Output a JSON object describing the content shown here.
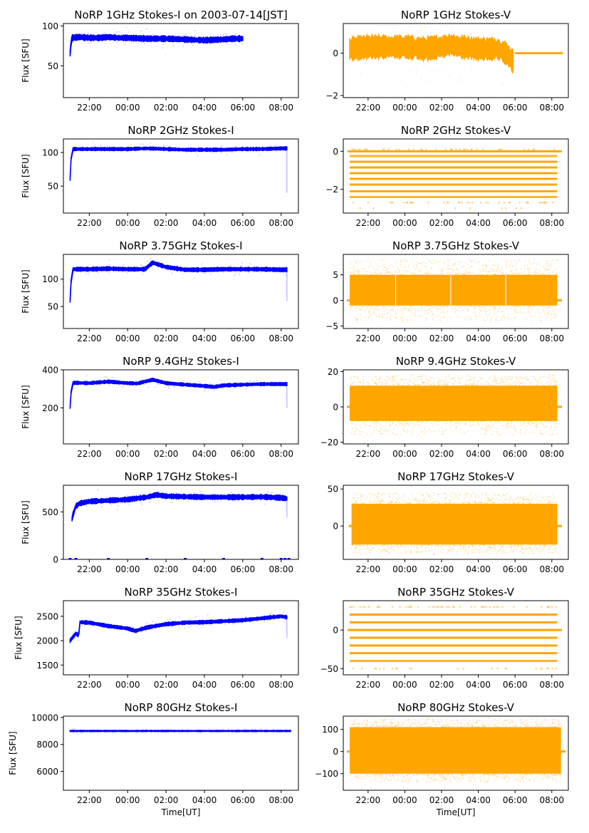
{
  "figure": {
    "title_prefix": "NoRP",
    "date_label": "on 2003-07-14[JST]"
  },
  "chart_data": [
    {
      "type": "scatter",
      "panel": "I",
      "freq": "1GHz",
      "title": "NoRP 1GHz Stokes-I on 2003-07-14[JST]",
      "ylabel": "Flux [SFU]",
      "xlabel": "",
      "color": "#0000ff",
      "ylim": [
        10,
        103
      ],
      "yticks": [
        50,
        100
      ],
      "ytick_labels": [
        "50",
        "100"
      ],
      "xlim_hours": [
        -3.35,
        8.9
      ],
      "xticks": [
        "22:00",
        "00:00",
        "02:00",
        "04:00",
        "06:00",
        "08:00"
      ],
      "series": [
        {
          "name": "Stokes-I",
          "x": [
            -3.0,
            -2.95,
            -2.9,
            -2.5,
            -2.0,
            -1.5,
            -1.0,
            -0.5,
            0,
            1,
            2,
            3,
            4,
            5,
            5.5,
            6.0
          ],
          "y": [
            65,
            78,
            85,
            86,
            85,
            85,
            86,
            85,
            85,
            84,
            84,
            83,
            82,
            83,
            84,
            84
          ],
          "spread": 3
        }
      ]
    },
    {
      "type": "scatter",
      "panel": "V",
      "freq": "1GHz",
      "title": "NoRP 1GHz Stokes-V",
      "ylabel": "",
      "xlabel": "",
      "color": "#ffa500",
      "ylim": [
        -2.1,
        1.4
      ],
      "yticks": [
        -2,
        0
      ],
      "ytick_labels": [
        "−2",
        "0"
      ],
      "xlim_hours": [
        -3.35,
        8.9
      ],
      "xticks": [
        "22:00",
        "00:00",
        "02:00",
        "04:00",
        "06:00",
        "08:00"
      ],
      "series": [
        {
          "name": "Stokes-V",
          "x": [
            -3.0,
            -2,
            -1,
            0,
            1,
            2,
            2.5,
            3,
            4,
            5,
            5.5,
            5.9
          ],
          "y": [
            0.2,
            0.3,
            0.3,
            0.3,
            0.2,
            0.3,
            0.4,
            0.3,
            0.2,
            0.2,
            0.0,
            -0.4
          ],
          "spread": 0.45
        },
        {
          "name": "Stokes-V flat",
          "x": [
            6.0,
            8.6
          ],
          "y": [
            0,
            0
          ],
          "spread": 0
        }
      ]
    },
    {
      "type": "scatter",
      "panel": "I",
      "freq": "2GHz",
      "title": "NoRP 2GHz Stokes-I",
      "ylabel": "Flux [SFU]",
      "xlabel": "",
      "color": "#0000ff",
      "ylim": [
        10,
        120
      ],
      "yticks": [
        50,
        100
      ],
      "ytick_labels": [
        "50",
        "100"
      ],
      "xlim_hours": [
        -3.35,
        8.9
      ],
      "xticks": [
        "22:00",
        "00:00",
        "02:00",
        "04:00",
        "06:00",
        "08:00"
      ],
      "series": [
        {
          "name": "Stokes-I",
          "x": [
            -3.0,
            -2.95,
            -2.85,
            -2,
            -1,
            0,
            1,
            2,
            3,
            4,
            5,
            6,
            7,
            8,
            8.3
          ],
          "y": [
            60,
            90,
            105,
            105,
            105,
            105,
            106,
            105,
            104,
            104,
            104,
            105,
            105,
            106,
            106
          ],
          "spread": 2
        }
      ]
    },
    {
      "type": "scatter",
      "panel": "V",
      "freq": "2GHz",
      "title": "NoRP 2GHz Stokes-V",
      "ylabel": "",
      "xlabel": "",
      "color": "#ffa500",
      "ylim": [
        -3.25,
        0.65
      ],
      "yticks": [
        -2,
        0
      ],
      "ytick_labels": [
        "−2",
        "0"
      ],
      "xlim_hours": [
        -3.35,
        8.9
      ],
      "xticks": [
        "22:00",
        "00:00",
        "02:00",
        "04:00",
        "06:00",
        "08:00"
      ],
      "levels": [
        0.1,
        -0.25,
        -0.55,
        -0.85,
        -1.15,
        -1.45,
        -1.75,
        -2.1,
        -2.4,
        -2.7,
        -3.0
      ],
      "level_density": [
        0.25,
        0.85,
        1,
        1,
        1,
        1,
        1,
        1,
        0.8,
        0.25,
        0.05
      ],
      "x_range_hours": [
        -3.0,
        8.3
      ]
    },
    {
      "type": "scatter",
      "panel": "I",
      "freq": "3.75GHz",
      "title": "NoRP 3.75GHz Stokes-I",
      "ylabel": "Flux [SFU]",
      "xlabel": "",
      "color": "#0000ff",
      "ylim": [
        10,
        145
      ],
      "yticks": [
        50,
        100
      ],
      "ytick_labels": [
        "50",
        "100"
      ],
      "xlim_hours": [
        -3.35,
        8.9
      ],
      "xticks": [
        "22:00",
        "00:00",
        "02:00",
        "04:00",
        "06:00",
        "08:00"
      ],
      "series": [
        {
          "name": "Stokes-I",
          "x": [
            -3.0,
            -2.95,
            -2.85,
            -2,
            -1,
            0,
            0.9,
            1.3,
            2,
            3,
            4,
            5,
            6,
            7,
            8,
            8.3
          ],
          "y": [
            60,
            95,
            118,
            118,
            119,
            118,
            118,
            130,
            122,
            117,
            117,
            118,
            118,
            118,
            117,
            117
          ],
          "spread": 3
        }
      ]
    },
    {
      "type": "scatter",
      "panel": "V",
      "freq": "3.75GHz",
      "title": "NoRP 3.75GHz Stokes-V",
      "ylabel": "",
      "xlabel": "",
      "color": "#ffa500",
      "ylim": [
        -5.5,
        9
      ],
      "yticks": [
        -5,
        0,
        5
      ],
      "ytick_labels": [
        "−5",
        "0",
        "5"
      ],
      "xlim_hours": [
        -3.35,
        8.9
      ],
      "xticks": [
        "22:00",
        "00:00",
        "02:00",
        "04:00",
        "06:00",
        "08:00"
      ],
      "band": {
        "x": [
          -3.0,
          8.3
        ],
        "low": -1,
        "high": 5,
        "outlier_low": -4,
        "outlier_high": 8
      },
      "gaps_hours": [
        -0.5,
        2.5,
        5.5
      ]
    },
    {
      "type": "scatter",
      "panel": "I",
      "freq": "9.4GHz",
      "title": "NoRP 9.4GHz Stokes-I",
      "ylabel": "Flux [SFU]",
      "xlabel": "",
      "color": "#0000ff",
      "ylim": [
        10,
        400
      ],
      "yticks": [
        200,
        400
      ],
      "ytick_labels": [
        "200",
        "400"
      ],
      "xlim_hours": [
        -3.35,
        8.9
      ],
      "xticks": [
        "22:00",
        "00:00",
        "02:00",
        "04:00",
        "06:00",
        "08:00"
      ],
      "series": [
        {
          "name": "Stokes-I",
          "x": [
            -3.0,
            -2.95,
            -2.85,
            -2,
            -1,
            0,
            0.5,
            1.3,
            2,
            3,
            4,
            4.5,
            5,
            6,
            7,
            8,
            8.3
          ],
          "y": [
            200,
            280,
            332,
            330,
            338,
            330,
            328,
            348,
            330,
            322,
            315,
            310,
            318,
            322,
            325,
            325,
            325
          ],
          "spread": 7
        }
      ]
    },
    {
      "type": "scatter",
      "panel": "V",
      "freq": "9.4GHz",
      "title": "NoRP 9.4GHz Stokes-V",
      "ylabel": "",
      "xlabel": "",
      "color": "#ffa500",
      "ylim": [
        -21,
        21
      ],
      "yticks": [
        -20,
        0,
        20
      ],
      "ytick_labels": [
        "−20",
        "0",
        "20"
      ],
      "xlim_hours": [
        -3.35,
        8.9
      ],
      "xticks": [
        "22:00",
        "00:00",
        "02:00",
        "04:00",
        "06:00",
        "08:00"
      ],
      "band": {
        "x": [
          -3.0,
          8.3
        ],
        "low": -8,
        "high": 12,
        "outlier_low": -16,
        "outlier_high": 18
      }
    },
    {
      "type": "scatter",
      "panel": "I",
      "freq": "17GHz",
      "title": "NoRP 17GHz Stokes-I",
      "ylabel": "Flux [SFU]",
      "xlabel": "",
      "color": "#0000ff",
      "ylim": [
        0,
        780
      ],
      "yticks": [
        0,
        500
      ],
      "ytick_labels": [
        "0",
        "500"
      ],
      "xlim_hours": [
        -3.35,
        8.9
      ],
      "xticks": [
        "22:00",
        "00:00",
        "02:00",
        "04:00",
        "06:00",
        "08:00"
      ],
      "series": [
        {
          "name": "Stokes-I",
          "x": [
            -2.9,
            -2.85,
            -2.7,
            -2.5,
            -2,
            -1,
            0,
            1,
            1.5,
            2,
            3,
            4,
            5,
            6,
            7,
            8,
            8.3
          ],
          "y": [
            420,
            470,
            560,
            590,
            610,
            620,
            630,
            655,
            680,
            665,
            660,
            655,
            655,
            655,
            658,
            648,
            640
          ],
          "spread": 22
        }
      ],
      "zero_marks_hours": [
        -3.0,
        -2.7,
        -1.0,
        1.0,
        3.0,
        5.0,
        7.0,
        8.0,
        8.2,
        8.4
      ]
    },
    {
      "type": "scatter",
      "panel": "V",
      "freq": "17GHz",
      "title": "NoRP 17GHz Stokes-V",
      "ylabel": "",
      "xlabel": "",
      "color": "#ffa500",
      "ylim": [
        -45,
        55
      ],
      "yticks": [
        0,
        50
      ],
      "ytick_labels": [
        "0",
        "50"
      ],
      "xlim_hours": [
        -3.35,
        8.9
      ],
      "xticks": [
        "22:00",
        "00:00",
        "02:00",
        "04:00",
        "06:00",
        "08:00"
      ],
      "band": {
        "x": [
          -2.9,
          8.3
        ],
        "low": -25,
        "high": 30,
        "outlier_low": -38,
        "outlier_high": 45
      }
    },
    {
      "type": "scatter",
      "panel": "I",
      "freq": "35GHz",
      "title": "NoRP 35GHz Stokes-I",
      "ylabel": "Flux [SFU]",
      "xlabel": "",
      "color": "#0000ff",
      "ylim": [
        1300,
        2820
      ],
      "yticks": [
        1500,
        2000,
        2500
      ],
      "ytick_labels": [
        "1500",
        "2000",
        "2500"
      ],
      "xlim_hours": [
        -3.35,
        8.9
      ],
      "xticks": [
        "22:00",
        "00:00",
        "02:00",
        "04:00",
        "06:00",
        "08:00"
      ],
      "series": [
        {
          "name": "Stokes-I",
          "x": [
            -3.0,
            -2.7,
            -2.55,
            -2.5,
            -2,
            -1,
            0,
            0.4,
            1,
            2,
            3,
            4,
            5,
            6,
            7,
            8,
            8.3
          ],
          "y": [
            2000,
            2150,
            2100,
            2380,
            2370,
            2300,
            2250,
            2200,
            2270,
            2340,
            2370,
            2380,
            2400,
            2420,
            2460,
            2500,
            2480
          ],
          "spread": 30
        }
      ]
    },
    {
      "type": "scatter",
      "panel": "V",
      "freq": "35GHz",
      "title": "NoRP 35GHz Stokes-V",
      "ylabel": "",
      "xlabel": "",
      "color": "#ffa500",
      "ylim": [
        -58,
        38
      ],
      "yticks": [
        -50,
        0
      ],
      "ytick_labels": [
        "−50",
        "0"
      ],
      "xlim_hours": [
        -3.35,
        8.9
      ],
      "xticks": [
        "22:00",
        "00:00",
        "02:00",
        "04:00",
        "06:00",
        "08:00"
      ],
      "levels": [
        30,
        20,
        10,
        0,
        -10,
        -20,
        -30,
        -40,
        -50
      ],
      "level_density": [
        0.3,
        0.9,
        1,
        1,
        1,
        1,
        1,
        0.8,
        0.15
      ],
      "x_range_hours": [
        -3.0,
        8.3
      ]
    },
    {
      "type": "scatter",
      "panel": "I",
      "freq": "80GHz",
      "title": "NoRP 80GHz Stokes-I",
      "ylabel": "Flux [SFU]",
      "xlabel": "Time[UT]",
      "color": "#0000ff",
      "ylim": [
        4600,
        10100
      ],
      "yticks": [
        6000,
        8000,
        10000
      ],
      "ytick_labels": [
        "6000",
        "8000",
        "10000"
      ],
      "xlim_hours": [
        -3.35,
        8.9
      ],
      "xticks": [
        "22:00",
        "00:00",
        "02:00",
        "04:00",
        "06:00",
        "08:00"
      ],
      "series": [
        {
          "name": "Stokes-I",
          "x": [
            -3.0,
            8.5
          ],
          "y": [
            9000,
            9000
          ],
          "spread": 40
        }
      ]
    },
    {
      "type": "scatter",
      "panel": "V",
      "freq": "80GHz",
      "title": "NoRP 80GHz Stokes-V",
      "ylabel": "",
      "xlabel": "Time[UT]",
      "color": "#ffa500",
      "ylim": [
        -175,
        160
      ],
      "yticks": [
        -100,
        0,
        100
      ],
      "ytick_labels": [
        "−100",
        "0",
        "100"
      ],
      "xlim_hours": [
        -3.35,
        8.9
      ],
      "xticks": [
        "22:00",
        "00:00",
        "02:00",
        "04:00",
        "06:00",
        "08:00"
      ],
      "band": {
        "x": [
          -3.0,
          8.5
        ],
        "low": -100,
        "high": 110,
        "outlier_low": -140,
        "outlier_high": 150
      }
    }
  ]
}
